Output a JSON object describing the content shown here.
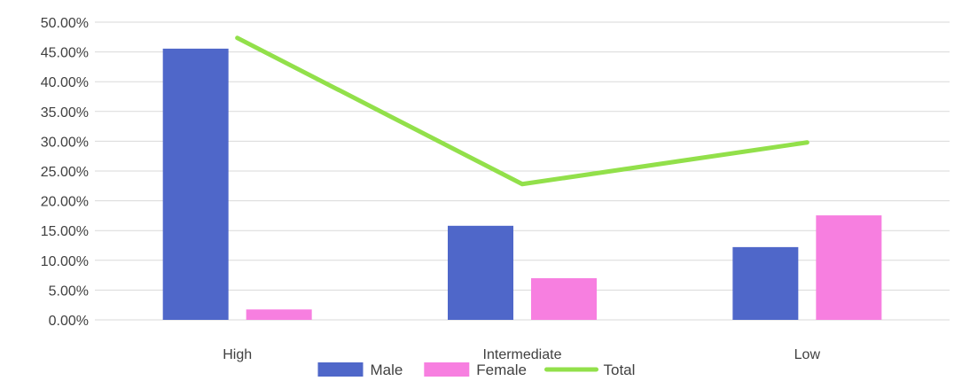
{
  "chart_data": {
    "type": "bar",
    "categories": [
      "High",
      "Intermediate",
      "Low"
    ],
    "series": [
      {
        "name": "Male",
        "kind": "bar",
        "color": "#4f67c9",
        "values": [
          0.4555,
          0.158,
          0.1222
        ]
      },
      {
        "name": "Female",
        "kind": "bar",
        "color": "#f77fe0",
        "values": [
          0.0175,
          0.07,
          0.1755
        ]
      },
      {
        "name": "Total",
        "kind": "line",
        "color": "#92e04a",
        "values": [
          0.4735,
          0.228,
          0.298
        ]
      }
    ],
    "ylim": [
      0,
      0.5
    ],
    "yticks": [
      0,
      0.05,
      0.1,
      0.15,
      0.2,
      0.25,
      0.3,
      0.35,
      0.4,
      0.45,
      0.5
    ],
    "ytick_labels": [
      "0.00%",
      "5.00%",
      "10.00%",
      "15.00%",
      "20.00%",
      "25.00%",
      "30.00%",
      "35.00%",
      "40.00%",
      "45.00%",
      "50.00%"
    ],
    "grid": true,
    "legend_position": "bottom"
  }
}
